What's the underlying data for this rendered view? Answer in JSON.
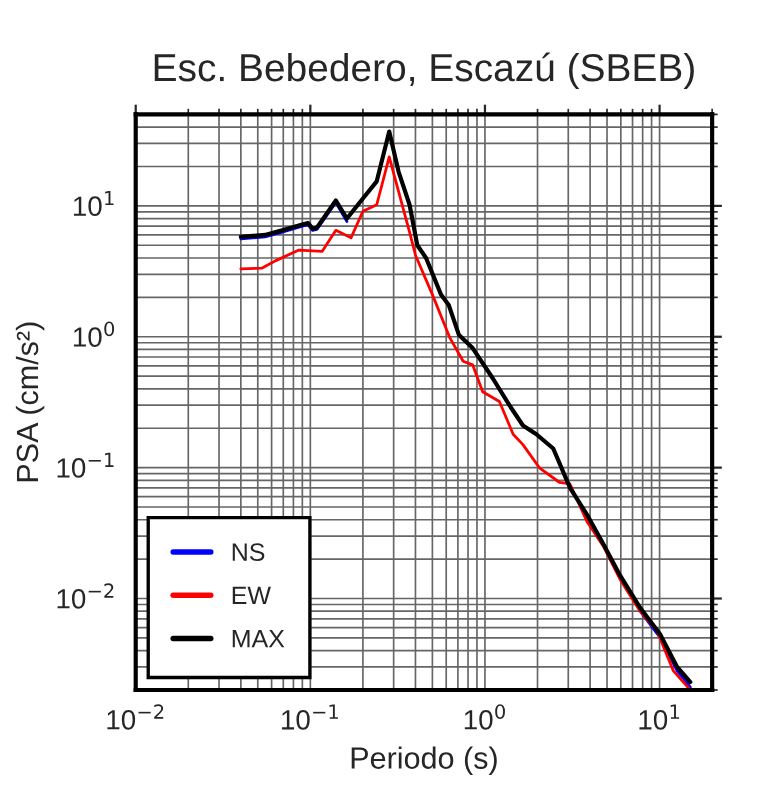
{
  "chart_data": {
    "type": "line",
    "title": "Esc. Bebedero, Escazú (SBEB)",
    "xlabel": "Periodo (s)",
    "ylabel": "PSA (cm/s²)",
    "log": "xy",
    "grid": true,
    "legend": "bottom left",
    "line_style": "solid",
    "marker": "none",
    "xlim": [
      0.01,
      20
    ],
    "ylim": [
      0.002,
      50
    ],
    "xticks": [
      {
        "value": 0.01,
        "label": "10$^{−2}$"
      },
      {
        "value": 0.1,
        "label": "10$^{−1}$"
      },
      {
        "value": 1,
        "label": "10$^{0}$"
      },
      {
        "value": 10,
        "label": "10$^{1}$"
      }
    ],
    "yticks": [
      {
        "value": 0.01,
        "label": "10$^{−2}$"
      },
      {
        "value": 0.1,
        "label": "10$^{−1}$"
      },
      {
        "value": 1,
        "label": "10$^{0}$"
      },
      {
        "value": 10,
        "label": "10$^{1}$"
      }
    ],
    "series": [
      {
        "name": "NS",
        "color": "#0000ff",
        "x": [
          0.04,
          0.055,
          0.069,
          0.09,
          0.097,
          0.103,
          0.109,
          0.14,
          0.162,
          0.2,
          0.24,
          0.283,
          0.32,
          0.37,
          0.41,
          0.46,
          0.56,
          0.62,
          0.71,
          0.85,
          1.11,
          1.38,
          1.65,
          1.97,
          2.46,
          3.07,
          3.83,
          4.77,
          5.94,
          7.74,
          10.1,
          12.6,
          15
        ],
        "values": [
          5.6,
          5.8,
          6.3,
          7.0,
          7.2,
          6.5,
          6.6,
          10.6,
          7.6,
          null,
          null,
          null,
          null,
          null,
          null,
          null,
          null,
          null,
          null,
          null,
          null,
          null,
          null,
          null,
          null,
          null,
          null,
          null,
          null,
          0.008,
          0.005,
          0.0028,
          0.0021
        ]
      },
      {
        "name": "EW",
        "color": "#ff0000",
        "x": [
          0.04,
          0.053,
          0.063,
          0.086,
          0.117,
          0.14,
          0.171,
          0.2,
          0.24,
          0.283,
          0.32,
          0.37,
          0.4,
          0.5,
          0.63,
          0.75,
          0.85,
          0.97,
          1.21,
          1.45,
          1.65,
          2.06,
          2.68,
          3.07,
          3.83,
          4.77,
          5.94,
          7.74,
          9.7,
          12,
          15
        ],
        "values": [
          3.3,
          3.35,
          3.8,
          4.6,
          4.5,
          6.5,
          5.7,
          9.1,
          10.2,
          23.7,
          12.9,
          6.3,
          4.2,
          2.1,
          0.98,
          0.65,
          0.61,
          0.38,
          0.32,
          0.18,
          0.15,
          0.099,
          0.077,
          0.075,
          0.039,
          0.025,
          0.014,
          0.008,
          0.0056,
          0.0028,
          0.002
        ]
      },
      {
        "name": "MAX",
        "color": "#000000",
        "x": [
          0.04,
          0.055,
          0.069,
          0.09,
          0.097,
          0.103,
          0.109,
          0.14,
          0.162,
          0.2,
          0.24,
          0.283,
          0.32,
          0.37,
          0.41,
          0.46,
          0.56,
          0.62,
          0.71,
          0.85,
          1.11,
          1.38,
          1.65,
          1.97,
          2.46,
          3.07,
          3.83,
          4.77,
          5.94,
          7.74,
          10.1,
          12.6,
          15
        ],
        "values": [
          5.8,
          6.0,
          6.5,
          7.2,
          7.4,
          6.7,
          6.8,
          11,
          8.0,
          11.4,
          15.4,
          37,
          18.3,
          10.2,
          5.0,
          4.0,
          2.1,
          1.75,
          1.03,
          0.82,
          0.48,
          0.3,
          0.21,
          0.18,
          0.14,
          0.07,
          0.044,
          0.026,
          0.015,
          0.0085,
          0.0053,
          0.003,
          0.0023
        ]
      }
    ]
  }
}
